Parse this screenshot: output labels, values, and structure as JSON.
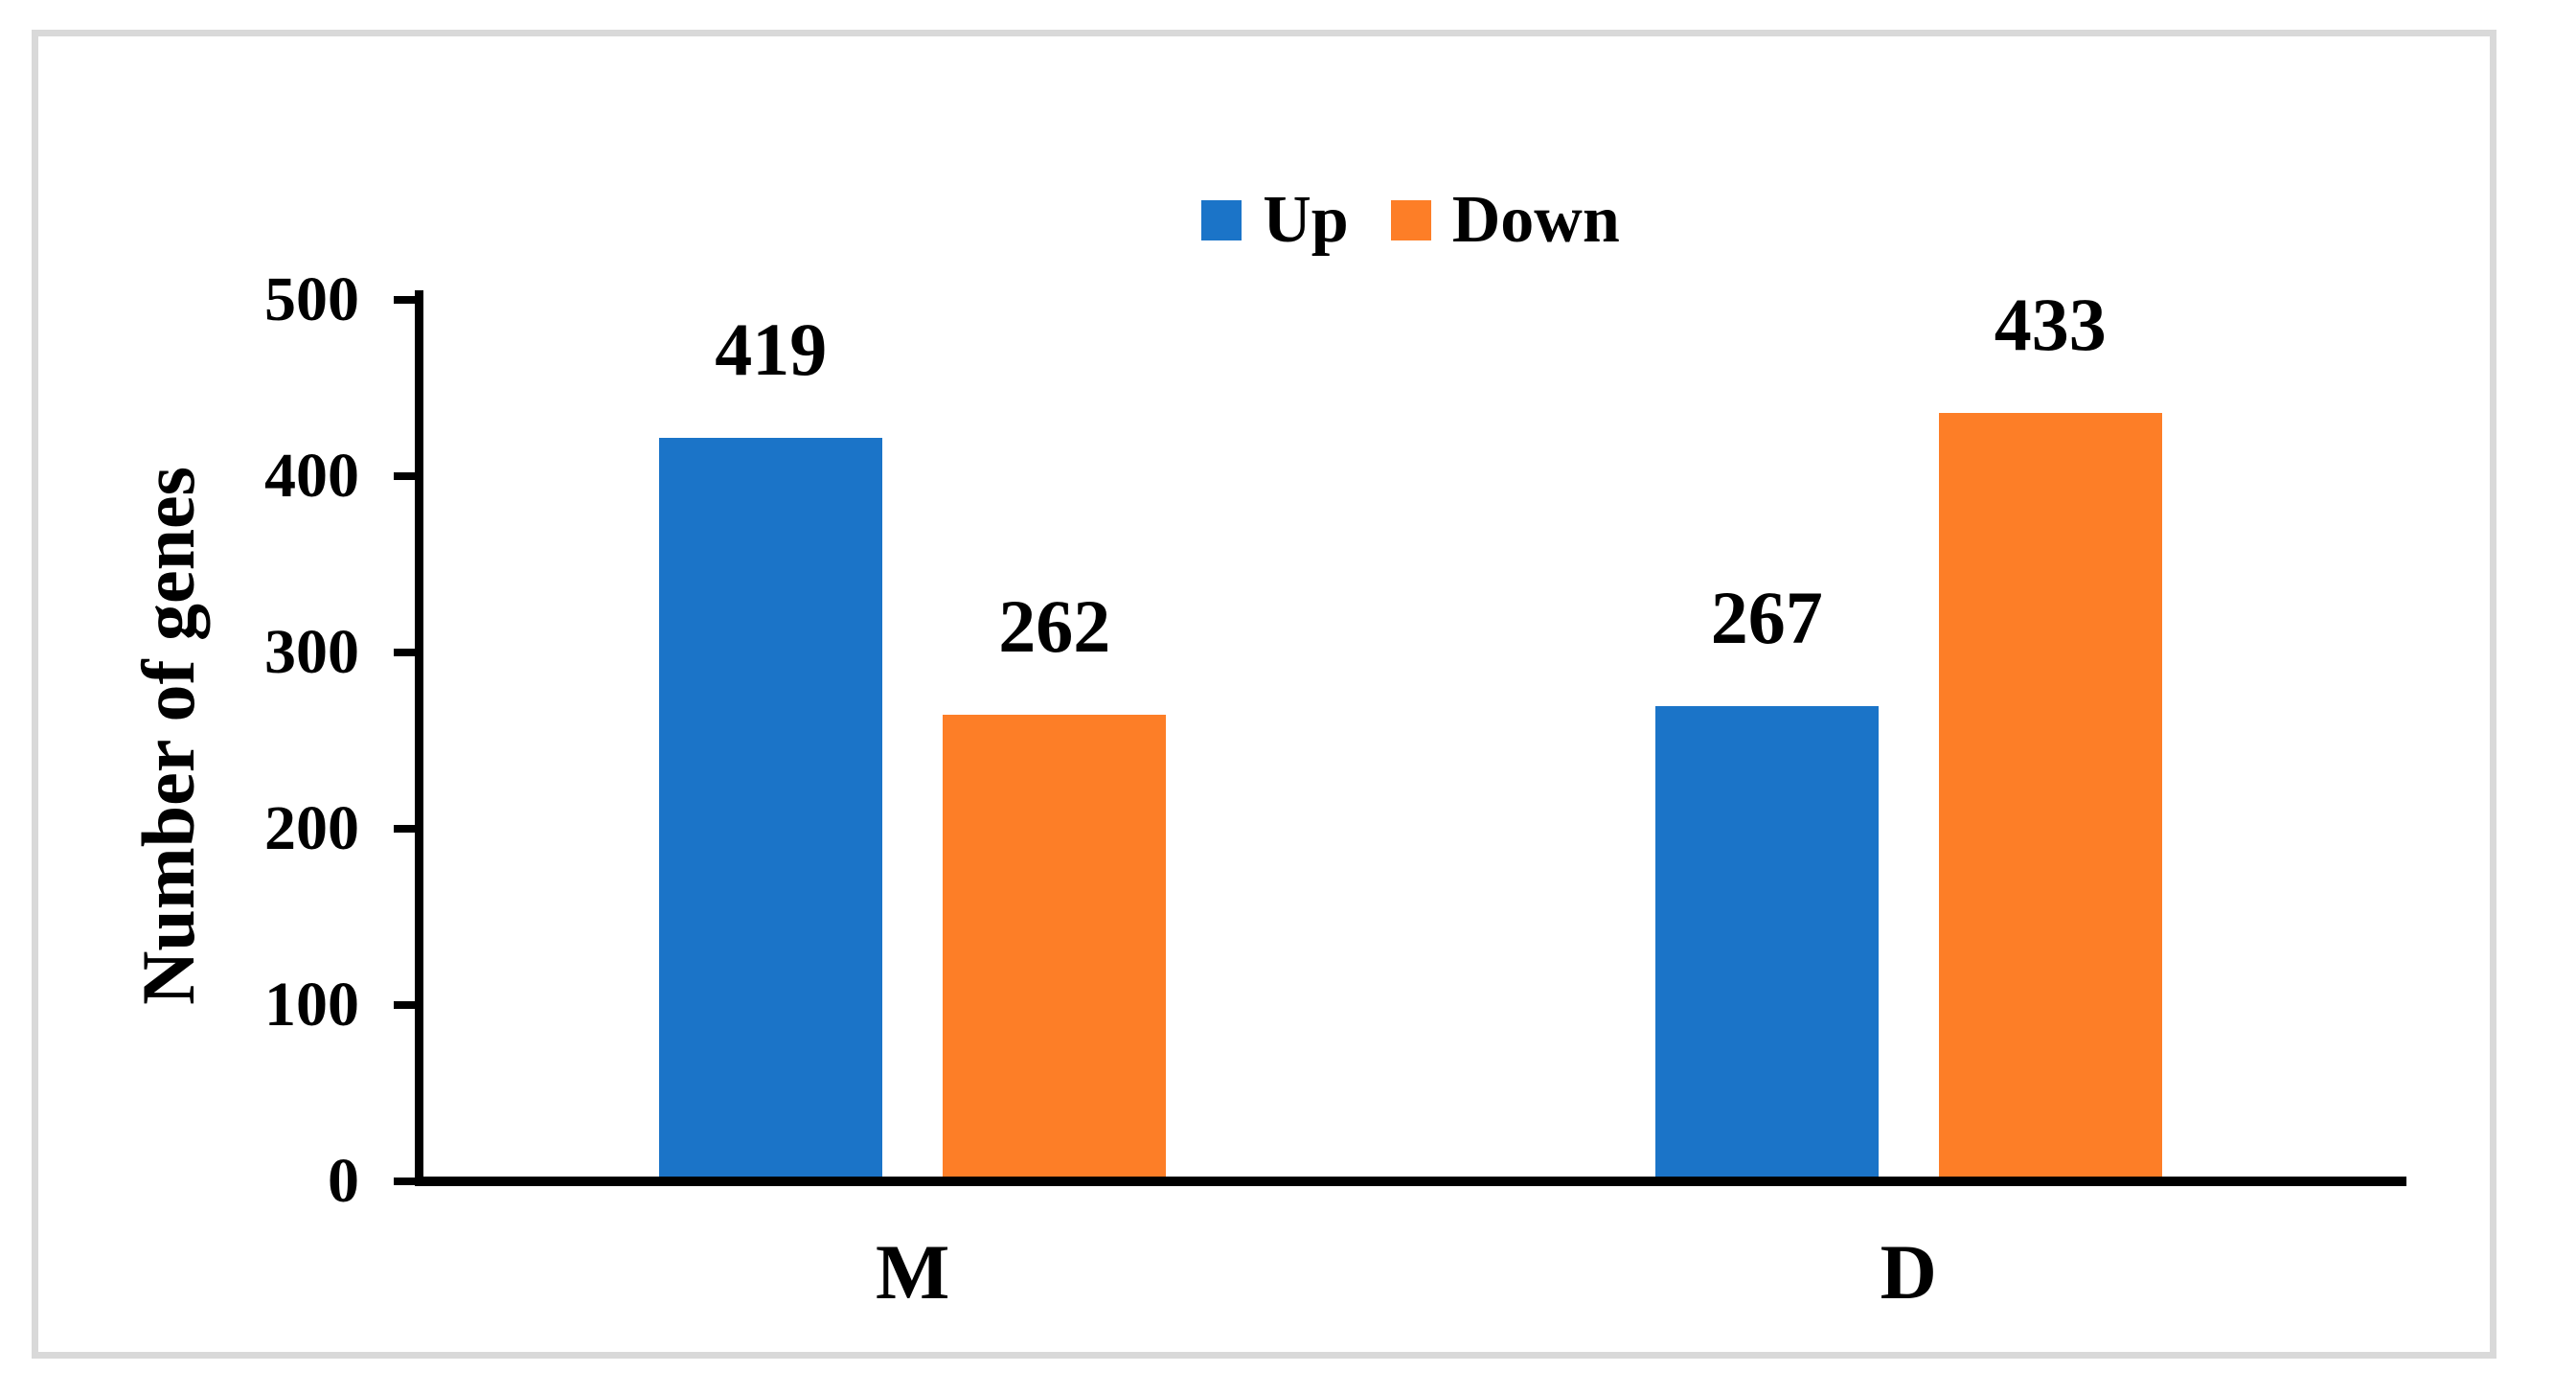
{
  "figure": {
    "background_color": "#ffffff",
    "border_color": "#d9d9d9",
    "axis_color": "#000000",
    "text_color": "#000000"
  },
  "chart_data": {
    "type": "bar",
    "title": "",
    "categories": [
      "M",
      "D"
    ],
    "series": [
      {
        "name": "Up",
        "color": "#1b74c8",
        "values": [
          419,
          267
        ]
      },
      {
        "name": "Down",
        "color": "#fd7e27",
        "values": [
          262,
          433
        ]
      }
    ],
    "data_labels": [
      [
        419,
        262
      ],
      [
        267,
        433
      ]
    ],
    "xlabel": "",
    "ylabel": "Number of genes",
    "ylim": [
      0,
      500
    ],
    "ytick_step": 100,
    "yticks": [
      "0",
      "100",
      "200",
      "300",
      "400",
      "500"
    ],
    "grid": false,
    "legend_position": "top-center",
    "show_data_labels": true
  }
}
